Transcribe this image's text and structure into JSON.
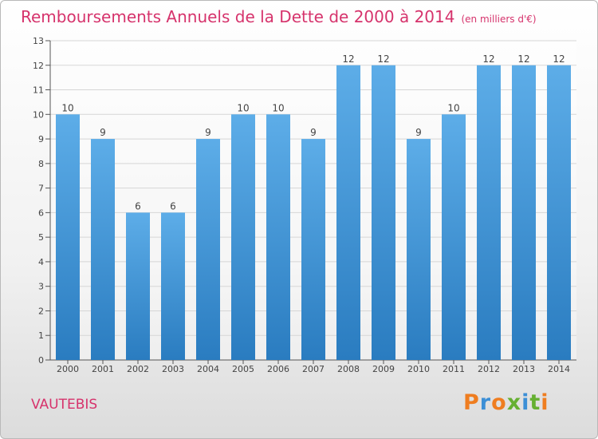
{
  "title": "Remboursements Annuels de la Dette de 2000 à 2014",
  "subtitle": "(en milliers d'€)",
  "location": "VAUTEBIS",
  "brand": {
    "text": "Proxiti"
  },
  "colors": {
    "title": "#d6336c",
    "bar_light": "#5dade8",
    "bar_dark": "#2a7cc0",
    "brand_letters": [
      "#ef7d20",
      "#3c8fd6",
      "#ef7d20",
      "#66b032",
      "#3c8fd6",
      "#66b032",
      "#ef7d20"
    ]
  },
  "chart_data": {
    "type": "bar",
    "categories": [
      "2000",
      "2001",
      "2002",
      "2003",
      "2004",
      "2005",
      "2006",
      "2007",
      "2008",
      "2009",
      "2010",
      "2011",
      "2012",
      "2013",
      "2014"
    ],
    "values": [
      10,
      9,
      6,
      6,
      9,
      10,
      10,
      9,
      12,
      12,
      9,
      10,
      12,
      12,
      12
    ],
    "ylim": [
      0,
      13
    ],
    "yticks": [
      "0",
      "1",
      "2",
      "3",
      "4",
      "5",
      "6",
      "7",
      "8",
      "9",
      "10",
      "11",
      "12",
      "13"
    ],
    "grid": true,
    "data_labels": true
  }
}
